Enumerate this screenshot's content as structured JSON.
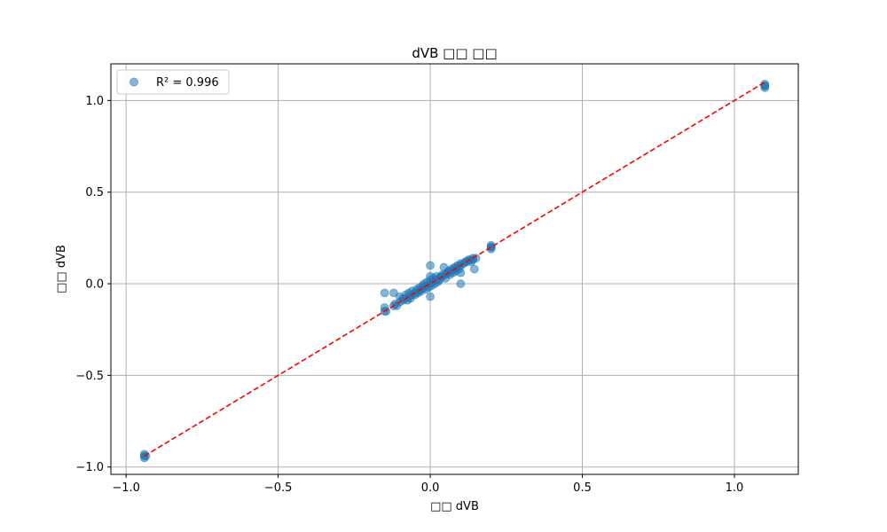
{
  "chart_data": {
    "type": "scatter",
    "title": "dVB □□ □□",
    "xlabel": "□□ dVB",
    "ylabel": "□□ dVB",
    "xlim": [
      -1.05,
      1.21
    ],
    "ylim": [
      -1.04,
      1.2
    ],
    "xticks": [
      -1.0,
      -0.5,
      0.0,
      0.5,
      1.0
    ],
    "xtick_labels": [
      "−1.0",
      "−0.5",
      "0.0",
      "0.5",
      "1.0"
    ],
    "yticks": [
      -1.0,
      -0.5,
      0.0,
      0.5,
      1.0
    ],
    "ytick_labels": [
      "−1.0",
      "−0.5",
      "0.0",
      "0.5",
      "1.0"
    ],
    "grid": true,
    "legend_position": "top-left",
    "series": [
      {
        "name": "R² = 0.996",
        "kind": "scatter",
        "color": "#1f77b4",
        "alpha": 0.55,
        "points": [
          [
            -0.94,
            -0.93
          ],
          [
            -0.94,
            -0.95
          ],
          [
            -0.94,
            -0.94
          ],
          [
            -0.935,
            -0.94
          ],
          [
            -0.15,
            -0.15
          ],
          [
            -0.15,
            -0.13
          ],
          [
            -0.15,
            -0.05
          ],
          [
            -0.145,
            -0.15
          ],
          [
            -0.12,
            -0.12
          ],
          [
            -0.12,
            -0.05
          ],
          [
            -0.115,
            -0.11
          ],
          [
            -0.11,
            -0.12
          ],
          [
            -0.1,
            -0.1
          ],
          [
            -0.1,
            -0.07
          ],
          [
            -0.09,
            -0.09
          ],
          [
            -0.09,
            -0.08
          ],
          [
            -0.08,
            -0.08
          ],
          [
            -0.08,
            -0.06
          ],
          [
            -0.075,
            -0.09
          ],
          [
            -0.07,
            -0.07
          ],
          [
            -0.07,
            -0.05
          ],
          [
            -0.065,
            -0.08
          ],
          [
            -0.06,
            -0.06
          ],
          [
            -0.06,
            -0.04
          ],
          [
            -0.05,
            -0.05
          ],
          [
            -0.05,
            -0.06
          ],
          [
            -0.045,
            -0.03
          ],
          [
            -0.04,
            -0.04
          ],
          [
            -0.04,
            -0.05
          ],
          [
            -0.035,
            -0.02
          ],
          [
            -0.03,
            -0.03
          ],
          [
            -0.03,
            -0.04
          ],
          [
            -0.025,
            -0.01
          ],
          [
            -0.02,
            -0.02
          ],
          [
            -0.02,
            0.0
          ],
          [
            -0.015,
            -0.03
          ],
          [
            -0.01,
            -0.01
          ],
          [
            -0.01,
            0.01
          ],
          [
            -0.005,
            -0.02
          ],
          [
            0.0,
            0.0
          ],
          [
            0.0,
            0.1
          ],
          [
            0.0,
            -0.07
          ],
          [
            0.0,
            0.04
          ],
          [
            0.0,
            0.02
          ],
          [
            0.005,
            -0.01
          ],
          [
            0.01,
            0.01
          ],
          [
            0.01,
            0.03
          ],
          [
            0.015,
            0.0
          ],
          [
            0.02,
            0.02
          ],
          [
            0.02,
            0.04
          ],
          [
            0.025,
            0.01
          ],
          [
            0.03,
            0.03
          ],
          [
            0.03,
            0.02
          ],
          [
            0.035,
            0.04
          ],
          [
            0.04,
            0.04
          ],
          [
            0.04,
            0.05
          ],
          [
            0.045,
            0.09
          ],
          [
            0.05,
            0.05
          ],
          [
            0.05,
            0.03
          ],
          [
            0.055,
            0.06
          ],
          [
            0.06,
            0.06
          ],
          [
            0.06,
            0.07
          ],
          [
            0.065,
            0.05
          ],
          [
            0.07,
            0.07
          ],
          [
            0.07,
            0.08
          ],
          [
            0.075,
            0.06
          ],
          [
            0.08,
            0.08
          ],
          [
            0.08,
            0.09
          ],
          [
            0.085,
            0.07
          ],
          [
            0.09,
            0.09
          ],
          [
            0.09,
            0.1
          ],
          [
            0.095,
            0.08
          ],
          [
            0.1,
            0.1
          ],
          [
            0.1,
            0.11
          ],
          [
            0.1,
            0.0
          ],
          [
            0.1,
            0.06
          ],
          [
            0.11,
            0.11
          ],
          [
            0.115,
            0.12
          ],
          [
            0.12,
            0.12
          ],
          [
            0.125,
            0.13
          ],
          [
            0.13,
            0.13
          ],
          [
            0.135,
            0.12
          ],
          [
            0.14,
            0.14
          ],
          [
            0.14,
            0.13
          ],
          [
            0.145,
            0.08
          ],
          [
            0.15,
            0.14
          ],
          [
            0.2,
            0.2
          ],
          [
            0.2,
            0.2
          ],
          [
            0.2,
            0.19
          ],
          [
            0.2,
            0.21
          ],
          [
            1.1,
            1.08
          ],
          [
            1.1,
            1.07
          ],
          [
            1.1,
            1.09
          ],
          [
            1.1,
            1.08
          ]
        ]
      },
      {
        "name": "",
        "kind": "line",
        "color": "#ff0000",
        "dashed": true,
        "points": [
          [
            -0.94,
            -0.94
          ],
          [
            1.1,
            1.1
          ]
        ]
      }
    ]
  }
}
